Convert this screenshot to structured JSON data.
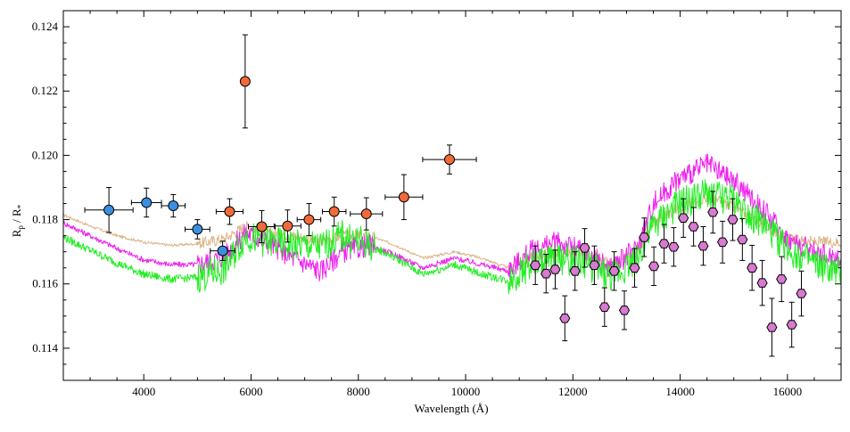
{
  "chart_data": {
    "type": "scatter",
    "title": "",
    "xlabel": "Wavelength (Å)",
    "ylabel_main": "R",
    "ylabel_sub1": "p",
    "ylabel_mid": " / R",
    "ylabel_sub2": "*",
    "xlim": [
      2500,
      17000
    ],
    "ylim": [
      0.113,
      0.1245
    ],
    "x_ticks": [
      4000,
      6000,
      8000,
      10000,
      12000,
      14000,
      16000
    ],
    "x_tick_labels": [
      "4000",
      "6000",
      "8000",
      "10000",
      "12000",
      "14000",
      "16000"
    ],
    "y_ticks": [
      0.114,
      0.116,
      0.118,
      0.12,
      0.122,
      0.124
    ],
    "y_tick_labels": [
      "0.114",
      "0.116",
      "0.118",
      "0.120",
      "0.122",
      "0.124"
    ],
    "grid": false,
    "legend": "none",
    "colors": {
      "blue_points": "#3b8fe0",
      "red_points": "#f26a3a",
      "magenta_points": "#d77ad0",
      "green_model": "#22ee22",
      "magenta_model": "#ee22ee",
      "tan_model": "#dcb68a"
    },
    "series": [
      {
        "marker": "circle",
        "color": "blue",
        "points": [
          {
            "x": 3350,
            "y": 0.1183,
            "xerr": 450,
            "yerr": 0.0007
          },
          {
            "x": 4050,
            "y": 0.11853,
            "xerr": 280,
            "yerr": 0.00045
          },
          {
            "x": 4550,
            "y": 0.11843,
            "xerr": 220,
            "yerr": 0.00035
          },
          {
            "x": 5000,
            "y": 0.1177,
            "xerr": 230,
            "yerr": 0.0003
          },
          {
            "x": 5470,
            "y": 0.11703,
            "xerr": 230,
            "yerr": 0.0003
          }
        ]
      },
      {
        "marker": "circle",
        "color": "red",
        "points": [
          {
            "x": 5600,
            "y": 0.11825,
            "xerr": 250,
            "yerr": 0.0004
          },
          {
            "x": 5890,
            "y": 0.1223,
            "xerr": 0,
            "yerr": 0.00145
          },
          {
            "x": 6200,
            "y": 0.11778,
            "xerr": 250,
            "yerr": 0.0005
          },
          {
            "x": 6680,
            "y": 0.1178,
            "xerr": 250,
            "yerr": 0.0005
          },
          {
            "x": 7080,
            "y": 0.118,
            "xerr": 220,
            "yerr": 0.0005
          },
          {
            "x": 7550,
            "y": 0.11825,
            "xerr": 220,
            "yerr": 0.00045
          },
          {
            "x": 8150,
            "y": 0.11818,
            "xerr": 300,
            "yerr": 0.0005
          },
          {
            "x": 8850,
            "y": 0.1187,
            "xerr": 350,
            "yerr": 0.0007
          },
          {
            "x": 9700,
            "y": 0.11987,
            "xerr": 500,
            "yerr": 0.00045
          }
        ]
      },
      {
        "marker": "hexagon",
        "color": "magenta",
        "points": [
          {
            "x": 11300,
            "y": 0.11658,
            "yerr": 0.0006
          },
          {
            "x": 11500,
            "y": 0.11632,
            "yerr": 0.0006
          },
          {
            "x": 11670,
            "y": 0.11645,
            "yerr": 0.0006
          },
          {
            "x": 11850,
            "y": 0.11493,
            "yerr": 0.0007
          },
          {
            "x": 12040,
            "y": 0.1164,
            "yerr": 0.0006
          },
          {
            "x": 12220,
            "y": 0.11712,
            "yerr": 0.0006
          },
          {
            "x": 12400,
            "y": 0.11658,
            "yerr": 0.0006
          },
          {
            "x": 12590,
            "y": 0.11528,
            "yerr": 0.0006
          },
          {
            "x": 12770,
            "y": 0.1164,
            "yerr": 0.0006
          },
          {
            "x": 12960,
            "y": 0.11518,
            "yerr": 0.0006
          },
          {
            "x": 13150,
            "y": 0.1165,
            "yerr": 0.0006
          },
          {
            "x": 13330,
            "y": 0.11745,
            "yerr": 0.0006
          },
          {
            "x": 13510,
            "y": 0.11655,
            "yerr": 0.0006
          },
          {
            "x": 13700,
            "y": 0.11725,
            "yerr": 0.0006
          },
          {
            "x": 13880,
            "y": 0.11715,
            "yerr": 0.0006
          },
          {
            "x": 14060,
            "y": 0.11805,
            "yerr": 0.0006
          },
          {
            "x": 14250,
            "y": 0.11778,
            "yerr": 0.0006
          },
          {
            "x": 14430,
            "y": 0.11718,
            "yerr": 0.0006
          },
          {
            "x": 14610,
            "y": 0.11823,
            "yerr": 0.00065
          },
          {
            "x": 14790,
            "y": 0.1173,
            "yerr": 0.00065
          },
          {
            "x": 14980,
            "y": 0.118,
            "yerr": 0.00065
          },
          {
            "x": 15160,
            "y": 0.11738,
            "yerr": 0.00065
          },
          {
            "x": 15340,
            "y": 0.1165,
            "yerr": 0.0007
          },
          {
            "x": 15530,
            "y": 0.11603,
            "yerr": 0.0007
          },
          {
            "x": 15710,
            "y": 0.11465,
            "yerr": 0.0009
          },
          {
            "x": 15890,
            "y": 0.11615,
            "yerr": 0.0007
          },
          {
            "x": 16080,
            "y": 0.11473,
            "yerr": 0.0007
          },
          {
            "x": 16260,
            "y": 0.1157,
            "yerr": 0.0007
          }
        ]
      }
    ],
    "model_lines": [
      {
        "color": "green",
        "x": [
          2500,
          3000,
          3500,
          4000,
          4500,
          5000,
          5500,
          5900,
          6300,
          6800,
          7300,
          7700,
          8200,
          8700,
          9200,
          9800,
          10300,
          10800,
          11200,
          11700,
          12200,
          12700,
          13200,
          13500,
          14000,
          14500,
          15000,
          15500,
          16000,
          16500,
          17000
        ],
        "y": [
          0.11745,
          0.11705,
          0.11665,
          0.1163,
          0.11615,
          0.1162,
          0.11645,
          0.1175,
          0.1173,
          0.1172,
          0.11715,
          0.1175,
          0.1172,
          0.1168,
          0.1163,
          0.1166,
          0.1163,
          0.1161,
          0.1166,
          0.1168,
          0.1167,
          0.1162,
          0.1168,
          0.1178,
          0.1185,
          0.1188,
          0.1186,
          0.1179,
          0.1171,
          0.1166,
          0.1163
        ]
      },
      {
        "color": "magenta",
        "x": [
          2500,
          3000,
          3500,
          4000,
          4500,
          5000,
          5500,
          5900,
          6300,
          6800,
          7300,
          7700,
          8200,
          8700,
          9200,
          9800,
          10300,
          10800,
          11200,
          11700,
          12200,
          12700,
          13200,
          13500,
          14000,
          14500,
          15000,
          15500,
          16000,
          16500,
          17000
        ],
        "y": [
          0.1179,
          0.1175,
          0.1171,
          0.11675,
          0.1166,
          0.1166,
          0.11685,
          0.1176,
          0.1173,
          0.1168,
          0.1164,
          0.117,
          0.1172,
          0.1169,
          0.1165,
          0.1168,
          0.1166,
          0.1164,
          0.117,
          0.1173,
          0.117,
          0.1165,
          0.1171,
          0.1185,
          0.1193,
          0.1197,
          0.1192,
          0.1184,
          0.1174,
          0.117,
          0.1168
        ]
      },
      {
        "color": "tan",
        "x": [
          2500,
          3000,
          3500,
          4000,
          4500,
          5000,
          5500,
          5900,
          6300,
          6800,
          7300,
          7700,
          8200,
          8700,
          9200,
          9800,
          10300,
          10800,
          11200,
          11700,
          12200,
          12700,
          13200,
          13500,
          14000,
          14500,
          15000,
          15500,
          16000,
          16500,
          17000
        ],
        "y": [
          0.11815,
          0.1178,
          0.1175,
          0.1173,
          0.1172,
          0.11725,
          0.1174,
          0.1178,
          0.1176,
          0.1175,
          0.1173,
          0.1175,
          0.1175,
          0.1172,
          0.1168,
          0.117,
          0.1168,
          0.1165,
          0.1168,
          0.117,
          0.1169,
          0.1166,
          0.117,
          0.1179,
          0.1184,
          0.1187,
          0.1184,
          0.1179,
          0.1174,
          0.1173,
          0.1173
        ]
      }
    ]
  }
}
